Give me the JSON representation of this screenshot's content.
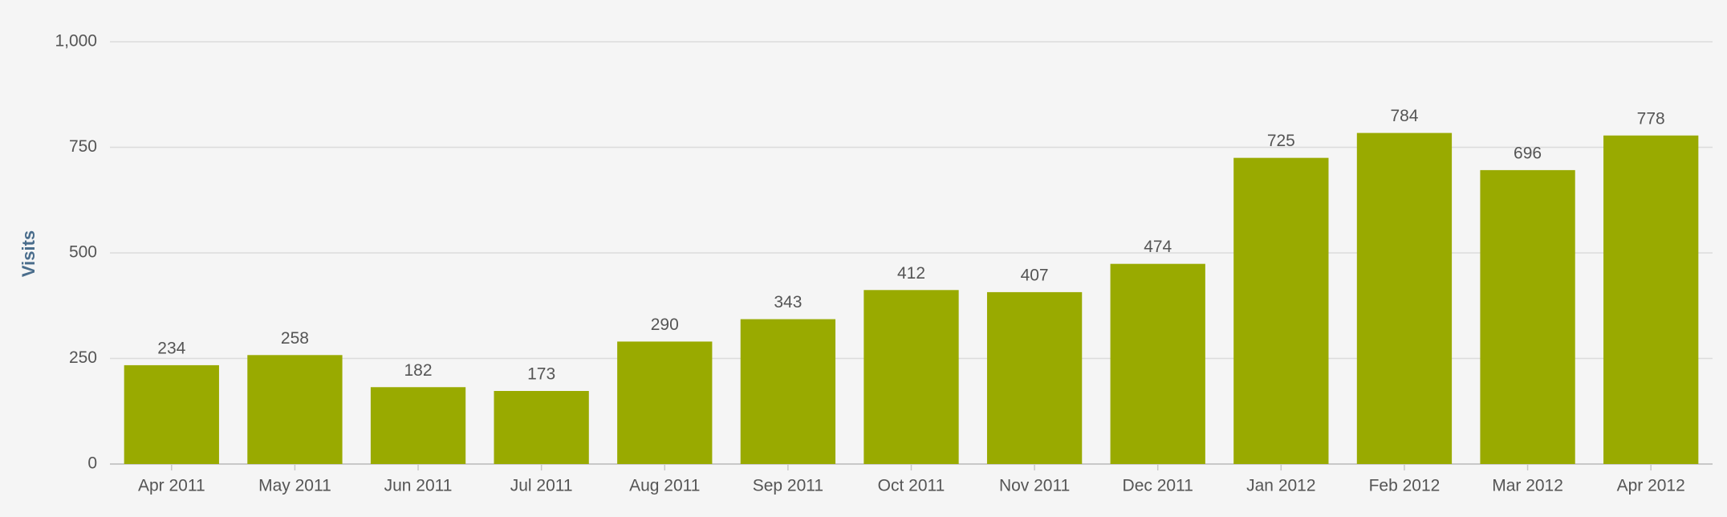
{
  "chart_data": {
    "type": "bar",
    "y_label": "Visits",
    "categories": [
      "Apr 2011",
      "May 2011",
      "Jun 2011",
      "Jul 2011",
      "Aug 2011",
      "Sep 2011",
      "Oct 2011",
      "Nov 2011",
      "Dec 2011",
      "Jan 2012",
      "Feb 2012",
      "Mar 2012",
      "Apr 2012"
    ],
    "values": [
      234,
      258,
      182,
      173,
      290,
      343,
      412,
      407,
      474,
      725,
      784,
      696,
      778
    ],
    "color": "#99aa00",
    "ylim": [
      0,
      1000
    ],
    "yticks": [
      0,
      250,
      500,
      750,
      {
        "value": 1000,
        "label": "1,000"
      }
    ],
    "grid": true
  }
}
